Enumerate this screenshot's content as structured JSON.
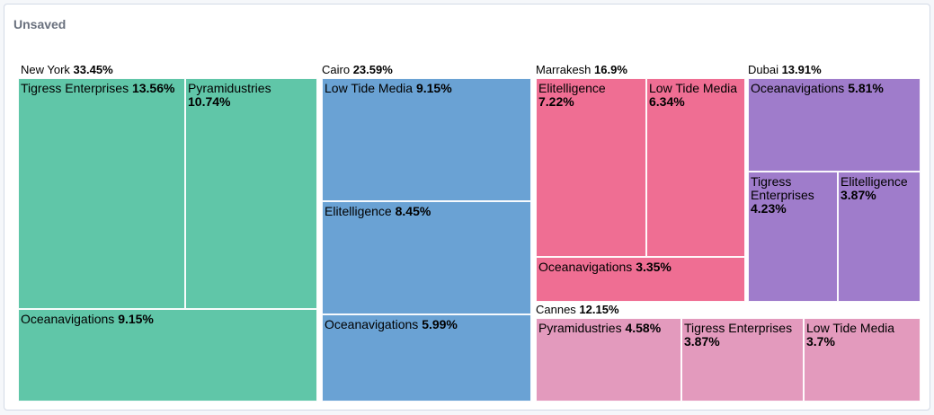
{
  "panel": {
    "title": "Unsaved"
  },
  "chart_data": {
    "type": "treemap",
    "groups": [
      {
        "name": "New York",
        "value_label": "33.45%",
        "value": 33.45,
        "color": "#60c6a8",
        "items": [
          {
            "name": "Tigress Enterprises",
            "value_label": "13.56%",
            "value": 13.56
          },
          {
            "name": "Pyramidustries",
            "value_label": "10.74%",
            "value": 10.74
          },
          {
            "name": "Oceanavigations",
            "value_label": "9.15%",
            "value": 9.15
          }
        ]
      },
      {
        "name": "Cairo",
        "value_label": "23.59%",
        "value": 23.59,
        "color": "#6aa2d4",
        "items": [
          {
            "name": "Low Tide Media",
            "value_label": "9.15%",
            "value": 9.15
          },
          {
            "name": "Elitelligence",
            "value_label": "8.45%",
            "value": 8.45
          },
          {
            "name": "Oceanavigations",
            "value_label": "5.99%",
            "value": 5.99
          }
        ]
      },
      {
        "name": "Marrakesh",
        "value_label": "16.9%",
        "value": 16.9,
        "color": "#ef6e93",
        "items": [
          {
            "name": "Elitelligence",
            "value_label": "7.22%",
            "value": 7.22
          },
          {
            "name": "Low Tide Media",
            "value_label": "6.34%",
            "value": 6.34
          },
          {
            "name": "Oceanavigations",
            "value_label": "3.35%",
            "value": 3.35
          }
        ]
      },
      {
        "name": "Dubai",
        "value_label": "13.91%",
        "value": 13.91,
        "color": "#9f7ccb",
        "items": [
          {
            "name": "Oceanavigations",
            "value_label": "5.81%",
            "value": 5.81
          },
          {
            "name": "Tigress Enterprises",
            "value_label": "4.23%",
            "value": 4.23
          },
          {
            "name": "Elitelligence",
            "value_label": "3.87%",
            "value": 3.87
          }
        ]
      },
      {
        "name": "Cannes",
        "value_label": "12.15%",
        "value": 12.15,
        "color": "#e39abd",
        "items": [
          {
            "name": "Pyramidustries",
            "value_label": "4.58%",
            "value": 4.58
          },
          {
            "name": "Tigress Enterprises",
            "value_label": "3.87%",
            "value": 3.87
          },
          {
            "name": "Low Tide Media",
            "value_label": "3.7%",
            "value": 3.7
          }
        ]
      }
    ]
  }
}
